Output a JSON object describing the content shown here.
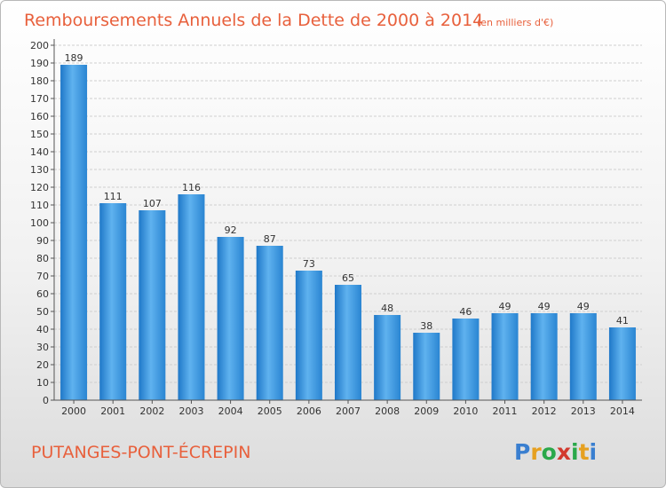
{
  "chart_data": {
    "type": "bar",
    "title": "Remboursements Annuels de la Dette de 2000 à 2014",
    "subtitle": "(en milliers d'€)",
    "categories": [
      "2000",
      "2001",
      "2002",
      "2003",
      "2004",
      "2005",
      "2006",
      "2007",
      "2008",
      "2009",
      "2010",
      "2011",
      "2012",
      "2013",
      "2014"
    ],
    "values": [
      189,
      111,
      107,
      116,
      92,
      87,
      73,
      65,
      48,
      38,
      46,
      49,
      49,
      49,
      41
    ],
    "ylim": [
      0,
      200
    ],
    "ytick_step": 10,
    "grid": true,
    "bar_color": "#3a96dd",
    "xlabel": "",
    "ylabel": ""
  },
  "footer": {
    "place": "PUTANGES-PONT-ÉCREPIN"
  },
  "logo": {
    "letters": [
      "P",
      "r",
      "o",
      "x",
      "i",
      "t",
      "i"
    ],
    "colors": [
      "#3a7fd0",
      "#e6a020",
      "#2aa84a",
      "#d23a2e",
      "#2aa84a",
      "#e6a020",
      "#3a7fd0"
    ]
  },
  "colors": {
    "accent": "#e8603c"
  }
}
